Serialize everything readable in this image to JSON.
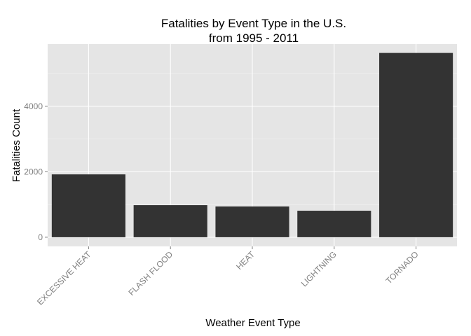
{
  "chart_data": {
    "type": "bar",
    "title_line1": "Fatalities by Event Type in the U.S.",
    "title_line2": "from 1995 - 2011",
    "xlabel": "Weather Event Type",
    "ylabel": "Fatalities Count",
    "categories": [
      "EXCESSIVE HEAT",
      "FLASH FLOOD",
      "HEAT",
      "LIGHTNING",
      "TORNADO"
    ],
    "values": [
      1920,
      980,
      940,
      810,
      5630
    ],
    "yticks": [
      0,
      2000,
      4000
    ],
    "ytick_labels": [
      "0",
      "2000",
      "4000"
    ],
    "ylim": [
      -280,
      5900
    ],
    "grid": true,
    "legend": "none",
    "colors": {
      "bar": "#333333",
      "panel": "#e5e5e5",
      "grid_major": "#ffffff",
      "grid_minor": "#f2f2f2",
      "tick_label": "#7f7f7f"
    }
  }
}
